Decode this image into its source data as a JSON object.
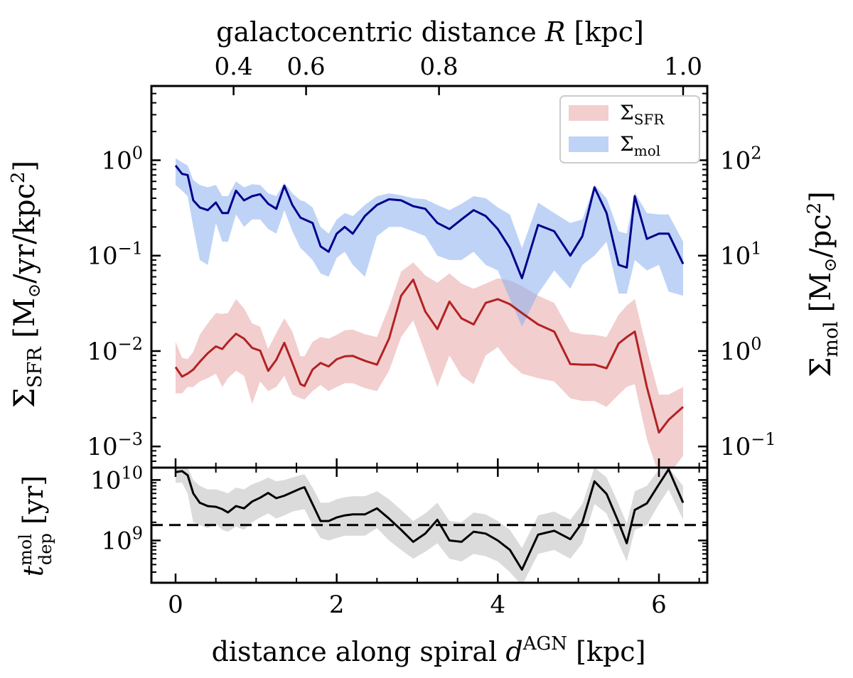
{
  "chart_data": {
    "type": "line",
    "colors": {
      "sfr_line": "#b22222",
      "sfr_band": "#e8a6a8",
      "mol_line": "#00008b",
      "mol_band": "#8aaeef",
      "tdep_line": "#000000",
      "tdep_band": "#bdbdbd",
      "legend_border": "#cccccc"
    },
    "top_axis": {
      "label_prefix": "galactocentric distance",
      "label_var": "R",
      "label_unit": "[kpc]",
      "ticks": [
        {
          "label": "0.4",
          "d": 0.72
        },
        {
          "label": "0.6",
          "d": 1.62
        },
        {
          "label": "0.8",
          "d": 3.27
        },
        {
          "label": "1.0",
          "d": 6.3
        }
      ]
    },
    "x_axis": {
      "label_prefix": "distance along spiral",
      "label_var": "d",
      "label_sup": "AGN",
      "label_unit": "[kpc]",
      "range": [
        -0.3,
        6.6
      ],
      "ticks": [
        "0",
        "2",
        "4",
        "6"
      ],
      "tick_values": [
        0,
        2,
        4,
        6
      ]
    },
    "top_panel": {
      "ylabel_left": {
        "sym": "Σ",
        "sub": "SFR",
        "unit_open": "[M",
        "unit_sun": "⊙",
        "unit_mid": "/yr/kpc",
        "unit_sup": "2",
        "unit_close": "]"
      },
      "ylabel_right": {
        "sym": "Σ",
        "sub": "mol",
        "unit_open": "[M",
        "unit_sun": "⊙",
        "unit_mid": "/pc",
        "unit_sup": "2",
        "unit_close": "]"
      },
      "ylim_left": [
        0.0006,
        6
      ],
      "ylim_right": [
        0.06,
        600
      ],
      "left_ticks": [
        {
          "base": "10",
          "exp": "0",
          "value": 1
        },
        {
          "base": "10",
          "exp": "−1",
          "value": 0.1
        },
        {
          "base": "10",
          "exp": "−2",
          "value": 0.01
        },
        {
          "base": "10",
          "exp": "−3",
          "value": 0.001
        }
      ],
      "right_ticks": [
        {
          "base": "10",
          "exp": "2",
          "value": 100
        },
        {
          "base": "10",
          "exp": "1",
          "value": 10
        },
        {
          "base": "10",
          "exp": "0",
          "value": 1
        },
        {
          "base": "10",
          "exp": "−1",
          "value": 0.1
        }
      ],
      "legend": [
        {
          "sym": "Σ",
          "sub": "SFR",
          "series": "sfr"
        },
        {
          "sym": "Σ",
          "sub": "mol",
          "series": "mol"
        }
      ],
      "series": [
        {
          "name": "Σ_SFR",
          "axis": "left",
          "x": [
            0.0,
            0.08,
            0.15,
            0.22,
            0.3,
            0.4,
            0.5,
            0.58,
            0.65,
            0.75,
            0.85,
            0.95,
            1.05,
            1.15,
            1.25,
            1.35,
            1.45,
            1.55,
            1.6,
            1.7,
            1.8,
            1.9,
            2.0,
            2.1,
            2.2,
            2.35,
            2.5,
            2.65,
            2.8,
            2.95,
            3.1,
            3.25,
            3.4,
            3.55,
            3.7,
            3.85,
            4.0,
            4.15,
            4.3,
            4.5,
            4.7,
            4.9,
            5.05,
            5.2,
            5.35,
            5.5,
            5.6,
            5.7,
            5.85,
            6.0,
            6.12,
            6.3
          ],
          "values": [
            0.0068,
            0.0054,
            0.0058,
            0.0064,
            0.0077,
            0.0095,
            0.0112,
            0.0105,
            0.0124,
            0.0152,
            0.0135,
            0.0108,
            0.0101,
            0.0062,
            0.0081,
            0.0122,
            0.0075,
            0.0045,
            0.0043,
            0.0064,
            0.0075,
            0.0069,
            0.0082,
            0.0088,
            0.0089,
            0.0079,
            0.0072,
            0.0135,
            0.038,
            0.056,
            0.026,
            0.017,
            0.033,
            0.022,
            0.019,
            0.032,
            0.035,
            0.031,
            0.025,
            0.019,
            0.016,
            0.0073,
            0.0072,
            0.0072,
            0.0066,
            0.012,
            0.014,
            0.016,
            0.0042,
            0.0014,
            0.0019,
            0.0026
          ],
          "lower": [
            0.0036,
            0.0036,
            0.0042,
            0.0042,
            0.0048,
            0.0052,
            0.0058,
            0.0042,
            0.0052,
            0.0062,
            0.0055,
            0.0028,
            0.0048,
            0.0038,
            0.0042,
            0.0055,
            0.0035,
            0.0032,
            0.0031,
            0.0038,
            0.0044,
            0.0038,
            0.0042,
            0.0046,
            0.0046,
            0.0041,
            0.0038,
            0.0062,
            0.014,
            0.021,
            0.0095,
            0.0042,
            0.009,
            0.0055,
            0.0045,
            0.009,
            0.011,
            0.0075,
            0.0058,
            0.0052,
            0.0048,
            0.0032,
            0.003,
            0.003,
            0.0026,
            0.0035,
            0.0042,
            0.0045,
            0.0012,
            0.0005,
            0.0005,
            0.0008
          ],
          "upper": [
            0.0125,
            0.0085,
            0.0082,
            0.0098,
            0.0148,
            0.0195,
            0.025,
            0.0245,
            0.025,
            0.035,
            0.028,
            0.0195,
            0.018,
            0.0105,
            0.0155,
            0.022,
            0.016,
            0.0088,
            0.0088,
            0.0125,
            0.014,
            0.0135,
            0.0148,
            0.0165,
            0.0168,
            0.015,
            0.014,
            0.029,
            0.068,
            0.085,
            0.062,
            0.052,
            0.065,
            0.051,
            0.045,
            0.051,
            0.058,
            0.055,
            0.048,
            0.038,
            0.032,
            0.016,
            0.015,
            0.0148,
            0.014,
            0.024,
            0.03,
            0.035,
            0.0105,
            0.0035,
            0.0035,
            0.0042
          ]
        },
        {
          "name": "Σ_mol",
          "axis": "right",
          "x": [
            0.0,
            0.08,
            0.15,
            0.22,
            0.3,
            0.4,
            0.5,
            0.58,
            0.65,
            0.75,
            0.85,
            0.95,
            1.05,
            1.15,
            1.25,
            1.35,
            1.45,
            1.55,
            1.6,
            1.7,
            1.8,
            1.9,
            2.0,
            2.1,
            2.2,
            2.35,
            2.5,
            2.65,
            2.8,
            2.95,
            3.1,
            3.25,
            3.4,
            3.55,
            3.7,
            3.85,
            4.0,
            4.15,
            4.3,
            4.5,
            4.7,
            4.9,
            5.05,
            5.2,
            5.35,
            5.5,
            5.6,
            5.7,
            5.85,
            6.0,
            6.12,
            6.3
          ],
          "values": [
            88,
            72,
            70,
            38,
            32,
            30,
            36,
            28,
            28,
            48,
            38,
            42,
            44,
            35,
            31,
            54,
            34,
            25,
            24,
            22,
            12.5,
            11,
            17,
            20,
            17,
            26,
            34,
            39,
            38,
            33,
            31,
            22,
            19,
            24,
            30,
            26,
            19,
            12,
            5.8,
            21,
            18,
            10,
            16,
            52,
            28,
            8,
            7.5,
            42,
            15,
            17,
            17,
            8.2
          ],
          "lower": [
            55,
            48,
            42,
            20,
            9,
            8,
            22,
            14,
            14,
            27,
            20,
            24,
            24,
            19,
            17,
            30,
            18,
            12,
            11,
            9,
            6.5,
            6,
            9.5,
            11,
            8,
            6,
            16,
            20,
            20,
            18,
            16,
            10,
            9,
            9,
            11,
            8,
            7,
            3.5,
            1.8,
            4,
            7,
            4.5,
            8,
            10,
            14,
            4,
            4,
            9,
            7,
            8,
            4.2,
            3.8
          ],
          "upper": [
            105,
            95,
            88,
            62,
            55,
            52,
            55,
            42,
            42,
            60,
            52,
            56,
            55,
            45,
            42,
            58,
            45,
            38,
            37,
            32,
            20,
            17,
            24,
            28,
            26,
            34,
            42,
            45,
            43,
            40,
            39,
            34,
            30,
            35,
            42,
            40,
            32,
            27,
            12,
            36,
            28,
            22,
            24,
            55,
            40,
            18,
            17,
            46,
            28,
            27,
            27,
            14
          ]
        }
      ]
    },
    "bottom_panel": {
      "ylabel": {
        "sym": "t",
        "sup": "mol",
        "sub": "dep",
        "unit": "[yr]"
      },
      "ylim": [
        200000000,
        16000000000
      ],
      "ticks": [
        {
          "base": "10",
          "exp": "10",
          "value": 10000000000
        },
        {
          "base": "10",
          "exp": "9",
          "value": 1000000000
        }
      ],
      "reference_line": 1800000000,
      "series": [
        {
          "name": "t_dep^mol",
          "x": [
            0.0,
            0.08,
            0.15,
            0.22,
            0.3,
            0.4,
            0.5,
            0.58,
            0.65,
            0.75,
            0.85,
            0.95,
            1.05,
            1.15,
            1.25,
            1.35,
            1.45,
            1.55,
            1.6,
            1.7,
            1.8,
            1.9,
            2.0,
            2.1,
            2.2,
            2.35,
            2.5,
            2.65,
            2.8,
            2.95,
            3.1,
            3.25,
            3.4,
            3.55,
            3.7,
            3.85,
            4.0,
            4.15,
            4.3,
            4.5,
            4.7,
            4.9,
            5.05,
            5.2,
            5.35,
            5.5,
            5.6,
            5.7,
            5.85,
            6.0,
            6.12,
            6.3
          ],
          "values": [
            13500000000,
            14000000000,
            12000000000,
            6000000000,
            4200000000,
            3700000000,
            3600000000,
            3300000000,
            2900000000,
            3700000000,
            3400000000,
            4400000000,
            5100000000,
            6100000000,
            5000000000,
            5500000000,
            6300000000,
            7200000000,
            7600000000,
            4000000000,
            2100000000,
            2100000000,
            2400000000,
            2600000000,
            2700000000,
            2700000000,
            3400000000,
            2300000000,
            1500000000,
            950000000,
            1300000000,
            2200000000,
            1000000000,
            950000000,
            1400000000,
            1300000000,
            1000000000,
            700000000,
            330000000,
            1250000000,
            1450000000,
            1050000000,
            2000000000,
            9500000000,
            5900000000,
            2000000000,
            900000000,
            3200000000,
            4100000000,
            8500000000,
            15000000000,
            4200000000
          ],
          "lower": [
            9000000000,
            9000000000,
            6000000000,
            2000000000,
            1800000000,
            1600000000,
            1900000000,
            1500000000,
            1400000000,
            1700000000,
            1500000000,
            2000000000,
            2400000000,
            2800000000,
            2300000000,
            2600000000,
            3000000000,
            3200000000,
            3300000000,
            1800000000,
            1100000000,
            1000000000,
            1100000000,
            1200000000,
            1200000000,
            1200000000,
            1600000000,
            1000000000,
            700000000,
            500000000,
            650000000,
            900000000,
            500000000,
            450000000,
            600000000,
            550000000,
            450000000,
            300000000,
            180000000,
            600000000,
            700000000,
            500000000,
            900000000,
            4000000000,
            2800000000,
            900000000,
            450000000,
            1500000000,
            1800000000,
            4000000000,
            7000000000,
            2200000000
          ],
          "upper": [
            16000000000,
            16000000000,
            16000000000,
            10000000000,
            8000000000,
            7000000000,
            7000000000,
            6500000000,
            6000000000,
            7500000000,
            7000000000,
            8500000000,
            9500000000,
            11000000000,
            9500000000,
            10000000000,
            11000000000,
            12000000000,
            12500000000,
            7500000000,
            4200000000,
            4200000000,
            4800000000,
            5200000000,
            5400000000,
            5400000000,
            6500000000,
            4800000000,
            3200000000,
            2100000000,
            2800000000,
            4200000000,
            2100000000,
            2000000000,
            2900000000,
            2700000000,
            2100000000,
            1500000000,
            750000000,
            2600000000,
            3000000000,
            2200000000,
            4000000000,
            16000000000,
            11000000000,
            4000000000,
            1900000000,
            6500000000,
            8000000000,
            15000000000,
            16000000000,
            8000000000
          ]
        }
      ]
    }
  }
}
